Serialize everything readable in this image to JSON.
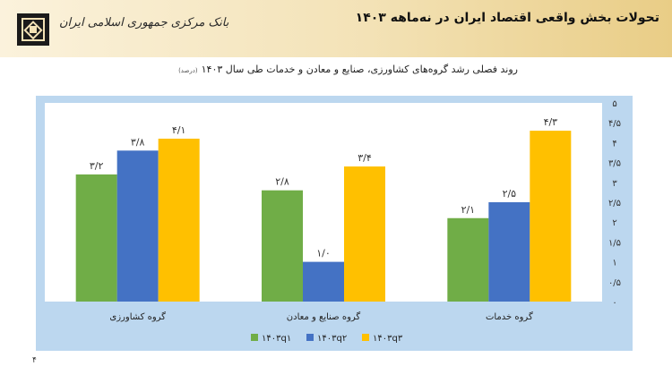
{
  "header": {
    "title": "تحولات بخش واقعی اقتصاد ایران در نه‌ماهه ۱۴۰۳",
    "bank_name": "بانک مرکزی جمهوری اسلامی ایران",
    "logo": "central-bank-emblem-icon"
  },
  "page_number": "۴",
  "chart_data": {
    "type": "bar",
    "title": "روند فصلی رشد گروه‌های کشاورزی، صنایع و معادن و خدمات طی سال ۱۴۰۳",
    "unit": "(درصد)",
    "categories": [
      "گروه کشاورزی",
      "گروه صنایع و معادن",
      "گروه خدمات"
    ],
    "series": [
      {
        "name": "۱۴۰۳q۱",
        "color": "#70ad47",
        "values": [
          3.2,
          2.8,
          2.1
        ],
        "labels": [
          "۳/۲",
          "۲/۸",
          "۲/۱"
        ]
      },
      {
        "name": "۱۴۰۳q۲",
        "color": "#4472c4",
        "values": [
          3.8,
          1.0,
          2.5
        ],
        "labels": [
          "۳/۸",
          "۱/۰",
          "۲/۵"
        ]
      },
      {
        "name": "۱۴۰۳q۳",
        "color": "#ffc000",
        "values": [
          4.1,
          3.4,
          4.3
        ],
        "labels": [
          "۴/۱",
          "۳/۴",
          "۴/۳"
        ]
      }
    ],
    "ylim": [
      0,
      5
    ],
    "yticks": [
      0,
      0.5,
      1,
      1.5,
      2,
      2.5,
      3,
      3.5,
      4,
      4.5,
      5
    ],
    "ytick_labels": [
      "۰",
      "۰/۵",
      "۱",
      "۱/۵",
      "۲",
      "۲/۵",
      "۳",
      "۳/۵",
      "۴",
      "۴/۵",
      "۵"
    ],
    "y_axis_side": "right",
    "legend_position": "bottom",
    "grid": false,
    "background_color": "#bcd7ef",
    "plot_color": "#ffffff"
  }
}
